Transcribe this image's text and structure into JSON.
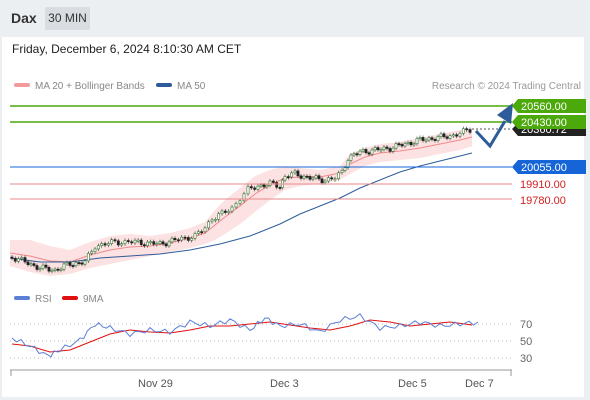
{
  "header": {
    "title": "Dax",
    "timeframe": "30 MIN"
  },
  "timestamp": "Friday, December 6, 2024 8:10:30 AM CET",
  "legend": {
    "bollinger": "MA 20 + Bollinger Bands",
    "ma50": "MA 50",
    "credit": "Research © 2024 Trading Central"
  },
  "levels": [
    {
      "label": "20560.00",
      "kind": "resistance"
    },
    {
      "label": "20430.00",
      "kind": "resistance"
    },
    {
      "label": "20055.00",
      "kind": "pivot"
    },
    {
      "label": "19910.00",
      "kind": "support"
    },
    {
      "label": "19780.00",
      "kind": "support"
    }
  ],
  "current_price_label": "20360.72",
  "rsi_legend": {
    "rsi": "RSI",
    "ma": "9MA"
  },
  "rsi_axis": [
    "70",
    "50",
    "30"
  ],
  "x_axis": [
    "Nov 29",
    "Dec 3",
    "Dec 5",
    "Dec 7"
  ],
  "colors": {
    "bollinger": "#f08080",
    "ma50": "#2e5c9a",
    "resistance": "#4ca90c",
    "pivot": "#1565d8",
    "support": "#d02020",
    "rsi": "#5b7fd6",
    "rsi_ma": "#e01010"
  }
}
